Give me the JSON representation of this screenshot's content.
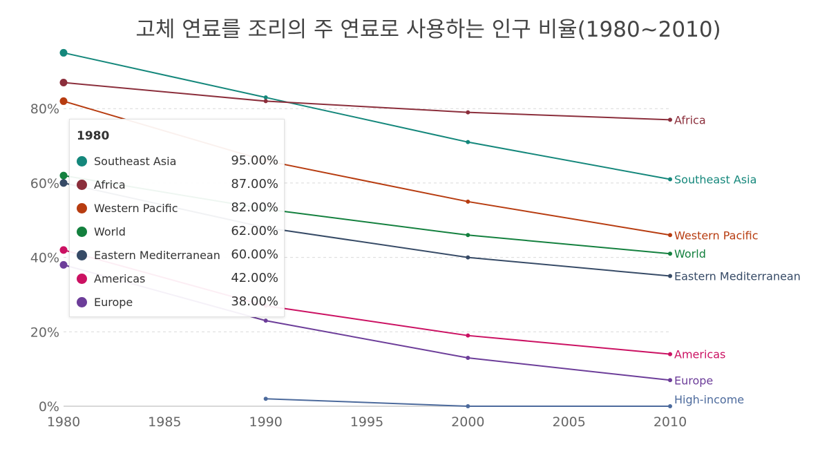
{
  "chart_data": {
    "type": "line",
    "title": "고체 연료를 조리의 주 연료로 사용하는 인구 비율(1980~2010)",
    "xlabel": "",
    "ylabel": "",
    "x_ticks": [
      "1980",
      "1985",
      "1990",
      "1995",
      "2000",
      "2005",
      "2010"
    ],
    "y_ticks": [
      "0%",
      "20%",
      "40%",
      "60%",
      "80%"
    ],
    "xlim": [
      1980,
      2010
    ],
    "ylim": [
      0,
      95
    ],
    "series": [
      {
        "name": "Southeast Asia",
        "color": "#14877b",
        "points": [
          [
            1980,
            95
          ],
          [
            1990,
            83
          ],
          [
            2000,
            71
          ],
          [
            2010,
            61
          ]
        ],
        "legend_value": "95.00%"
      },
      {
        "name": "Africa",
        "color": "#8b2e3b",
        "points": [
          [
            1980,
            87
          ],
          [
            1990,
            82
          ],
          [
            2000,
            79
          ],
          [
            2010,
            77
          ]
        ],
        "legend_value": "87.00%"
      },
      {
        "name": "Western Pacific",
        "color": "#b73c10",
        "points": [
          [
            1980,
            82
          ],
          [
            1990,
            66
          ],
          [
            2000,
            55
          ],
          [
            2010,
            46
          ]
        ],
        "legend_value": "82.00%"
      },
      {
        "name": "World",
        "color": "#13803e",
        "points": [
          [
            1980,
            62
          ],
          [
            1990,
            53
          ],
          [
            2000,
            46
          ],
          [
            2010,
            41
          ]
        ],
        "legend_value": "62.00%"
      },
      {
        "name": "Eastern Mediterranean",
        "color": "#364a66",
        "points": [
          [
            1980,
            60
          ],
          [
            1990,
            48
          ],
          [
            2000,
            40
          ],
          [
            2010,
            35
          ]
        ],
        "legend_value": "60.00%"
      },
      {
        "name": "Americas",
        "color": "#cb1162",
        "points": [
          [
            1980,
            42
          ],
          [
            1990,
            27
          ],
          [
            2000,
            19
          ],
          [
            2010,
            14
          ]
        ],
        "legend_value": "42.00%"
      },
      {
        "name": "Europe",
        "color": "#6c3d99",
        "points": [
          [
            1980,
            38
          ],
          [
            1990,
            23
          ],
          [
            2000,
            13
          ],
          [
            2010,
            7
          ]
        ],
        "legend_value": "38.00%"
      },
      {
        "name": "High-income",
        "color": "#4c6a9c",
        "points": [
          [
            1990,
            2
          ],
          [
            2000,
            0
          ],
          [
            2010,
            0
          ]
        ],
        "legend_value": null
      }
    ],
    "tooltip": {
      "year": "1980"
    }
  }
}
